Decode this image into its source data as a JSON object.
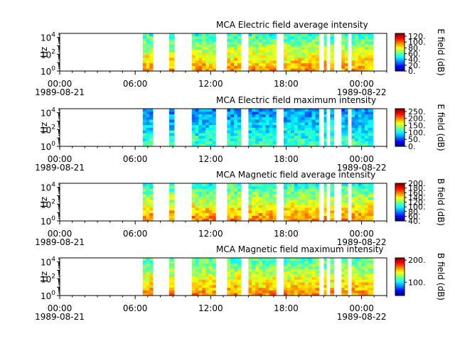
{
  "chart_data": [
    {
      "type": "heatmap",
      "title": "MCA  Electric field average intensity",
      "ylabel": "Hz",
      "y_scale": "log",
      "ylim": [
        1,
        30000
      ],
      "y_ticks": [
        {
          "base": "10",
          "exp": "0",
          "value": 1
        },
        {
          "base": "10",
          "exp": "2",
          "value": 100
        },
        {
          "base": "10",
          "exp": "4",
          "value": 10000
        }
      ],
      "x_ticks": [
        {
          "line1": "00:00",
          "line2": "1989-08-21",
          "hour": 0
        },
        {
          "line1": "06:00",
          "line2": "",
          "hour": 6
        },
        {
          "line1": "12:00",
          "line2": "",
          "hour": 12
        },
        {
          "line1": "18:00",
          "line2": "",
          "hour": 18
        },
        {
          "line1": "00:00",
          "line2": "1989-08-22",
          "hour": 24
        }
      ],
      "xlim_hours": [
        0,
        26
      ],
      "colorbar": {
        "label": "E field (dB)",
        "min": 0,
        "max": 130,
        "ticks": [
          "0.",
          "20.",
          "40.",
          "60.",
          "80.",
          "100.",
          "120."
        ],
        "tick_values": [
          0,
          20,
          40,
          60,
          80,
          100,
          120
        ]
      },
      "coverage_hours": [
        [
          6.6,
          7.4
        ],
        [
          8.7,
          9.1
        ],
        [
          10.5,
          12.4
        ],
        [
          13.3,
          14.4
        ],
        [
          15.0,
          17.2
        ],
        [
          17.8,
          20.6
        ],
        [
          21.0,
          21.2
        ],
        [
          21.5,
          21.8
        ],
        [
          22.4,
          22.9
        ],
        [
          23.2,
          24.5
        ],
        [
          24.5,
          24.9
        ]
      ],
      "level_profile": {
        "low_freq_db": 95,
        "high_freq_db": 55
      }
    },
    {
      "type": "heatmap",
      "title": "MCA  Electric field maximum intensity",
      "ylabel": "Hz",
      "y_scale": "log",
      "ylim": [
        1,
        30000
      ],
      "y_ticks": [
        {
          "base": "10",
          "exp": "0",
          "value": 1
        },
        {
          "base": "10",
          "exp": "2",
          "value": 100
        },
        {
          "base": "10",
          "exp": "4",
          "value": 10000
        }
      ],
      "x_ticks": [
        {
          "line1": "00:00",
          "line2": "1989-08-21",
          "hour": 0
        },
        {
          "line1": "06:00",
          "line2": "",
          "hour": 6
        },
        {
          "line1": "12:00",
          "line2": "",
          "hour": 12
        },
        {
          "line1": "18:00",
          "line2": "",
          "hour": 18
        },
        {
          "line1": "00:00",
          "line2": "1989-08-22",
          "hour": 24
        }
      ],
      "xlim_hours": [
        0,
        26
      ],
      "colorbar": {
        "label": "E field (dB)",
        "min": 0,
        "max": 270,
        "ticks": [
          "0.",
          "50.",
          "100.",
          "150.",
          "200.",
          "250."
        ],
        "tick_values": [
          0,
          50,
          100,
          150,
          200,
          250
        ]
      },
      "coverage_hours": [
        [
          6.6,
          7.4
        ],
        [
          8.7,
          9.1
        ],
        [
          10.5,
          12.4
        ],
        [
          13.3,
          14.4
        ],
        [
          15.0,
          17.2
        ],
        [
          17.8,
          20.6
        ],
        [
          21.0,
          21.2
        ],
        [
          21.5,
          21.8
        ],
        [
          22.4,
          22.9
        ],
        [
          23.2,
          24.5
        ],
        [
          24.5,
          24.9
        ]
      ],
      "level_profile": {
        "low_freq_db": 120,
        "high_freq_db": 70
      }
    },
    {
      "type": "heatmap",
      "title": "MCA  Magnetic field average intensity",
      "ylabel": "Hz",
      "y_scale": "log",
      "ylim": [
        1,
        30000
      ],
      "y_ticks": [
        {
          "base": "10",
          "exp": "0",
          "value": 1
        },
        {
          "base": "10",
          "exp": "2",
          "value": 100
        },
        {
          "base": "10",
          "exp": "4",
          "value": 10000
        }
      ],
      "x_ticks": [
        {
          "line1": "00:00",
          "line2": "1989-08-21",
          "hour": 0
        },
        {
          "line1": "06:00",
          "line2": "",
          "hour": 6
        },
        {
          "line1": "12:00",
          "line2": "",
          "hour": 12
        },
        {
          "line1": "18:00",
          "line2": "",
          "hour": 18
        },
        {
          "line1": "00:00",
          "line2": "1989-08-22",
          "hour": 24
        }
      ],
      "xlim_hours": [
        0,
        26
      ],
      "colorbar": {
        "label": "B field (dB)",
        "min": 40,
        "max": 200,
        "ticks": [
          "40.",
          "60.",
          "80.",
          "100.",
          "120.",
          "140.",
          "160.",
          "180.",
          "200."
        ],
        "tick_values": [
          40,
          60,
          80,
          100,
          120,
          140,
          160,
          180,
          200
        ]
      },
      "coverage_hours": [
        [
          6.6,
          7.4
        ],
        [
          8.7,
          9.1
        ],
        [
          10.5,
          12.4
        ],
        [
          13.3,
          14.4
        ],
        [
          15.0,
          17.2
        ],
        [
          17.8,
          20.6
        ],
        [
          21.0,
          21.2
        ],
        [
          21.5,
          21.8
        ],
        [
          22.4,
          22.9
        ],
        [
          23.2,
          24.5
        ],
        [
          24.5,
          24.9
        ]
      ],
      "level_profile": {
        "low_freq_db": 160,
        "high_freq_db": 105
      }
    },
    {
      "type": "heatmap",
      "title": "MCA  Magnetic field maximum intensity",
      "ylabel": "Hz",
      "y_scale": "log",
      "ylim": [
        1,
        30000
      ],
      "y_ticks": [
        {
          "base": "10",
          "exp": "0",
          "value": 1
        },
        {
          "base": "10",
          "exp": "2",
          "value": 100
        },
        {
          "base": "10",
          "exp": "4",
          "value": 10000
        }
      ],
      "x_ticks": [
        {
          "line1": "00:00",
          "line2": "1989-08-21",
          "hour": 0
        },
        {
          "line1": "06:00",
          "line2": "",
          "hour": 6
        },
        {
          "line1": "12:00",
          "line2": "",
          "hour": 12
        },
        {
          "line1": "18:00",
          "line2": "",
          "hour": 18
        },
        {
          "line1": "00:00",
          "line2": "1989-08-22",
          "hour": 24
        }
      ],
      "xlim_hours": [
        0,
        26
      ],
      "colorbar": {
        "label": "B field (dB)",
        "min": 40,
        "max": 210,
        "ticks": [
          "100.",
          "200."
        ],
        "tick_values": [
          100,
          200
        ]
      },
      "coverage_hours": [
        [
          6.6,
          7.4
        ],
        [
          8.7,
          9.1
        ],
        [
          10.5,
          12.4
        ],
        [
          13.3,
          14.4
        ],
        [
          15.0,
          17.2
        ],
        [
          17.8,
          20.6
        ],
        [
          21.0,
          21.2
        ],
        [
          21.5,
          21.8
        ],
        [
          22.4,
          22.9
        ],
        [
          23.2,
          24.5
        ],
        [
          24.5,
          24.9
        ]
      ],
      "level_profile": {
        "low_freq_db": 165,
        "high_freq_db": 115
      }
    }
  ]
}
